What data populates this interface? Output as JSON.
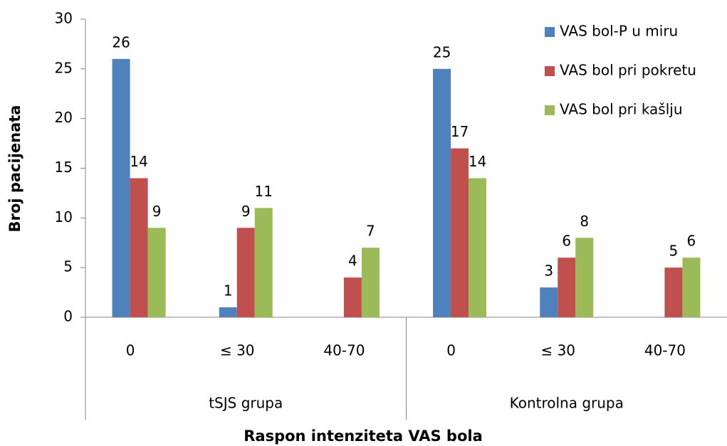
{
  "chart_data": {
    "type": "bar",
    "categories": [
      "0",
      "≤ 30",
      "40-70",
      "0",
      "≤ 30",
      "40-70"
    ],
    "groups": [
      "tSJS grupa",
      "Kontrolna grupa"
    ],
    "series": [
      {
        "name": "VAS bol-P u miru",
        "color": "#4f81bd",
        "values": [
          26,
          1,
          null,
          25,
          3,
          null
        ]
      },
      {
        "name": "VAS bol pri pokretu",
        "color": "#c0504d",
        "values": [
          14,
          9,
          4,
          17,
          6,
          5
        ]
      },
      {
        "name": "VAS bol pri kašlju",
        "color": "#9bbb59",
        "values": [
          9,
          11,
          7,
          14,
          8,
          6
        ]
      }
    ],
    "xlabel": "Raspon intenziteta VAS bola",
    "ylabel": "Broj pacijenata",
    "ylim": [
      0,
      30
    ],
    "yticks": [
      0,
      5,
      10,
      15,
      20,
      25,
      30
    ],
    "legend": "top-right"
  }
}
